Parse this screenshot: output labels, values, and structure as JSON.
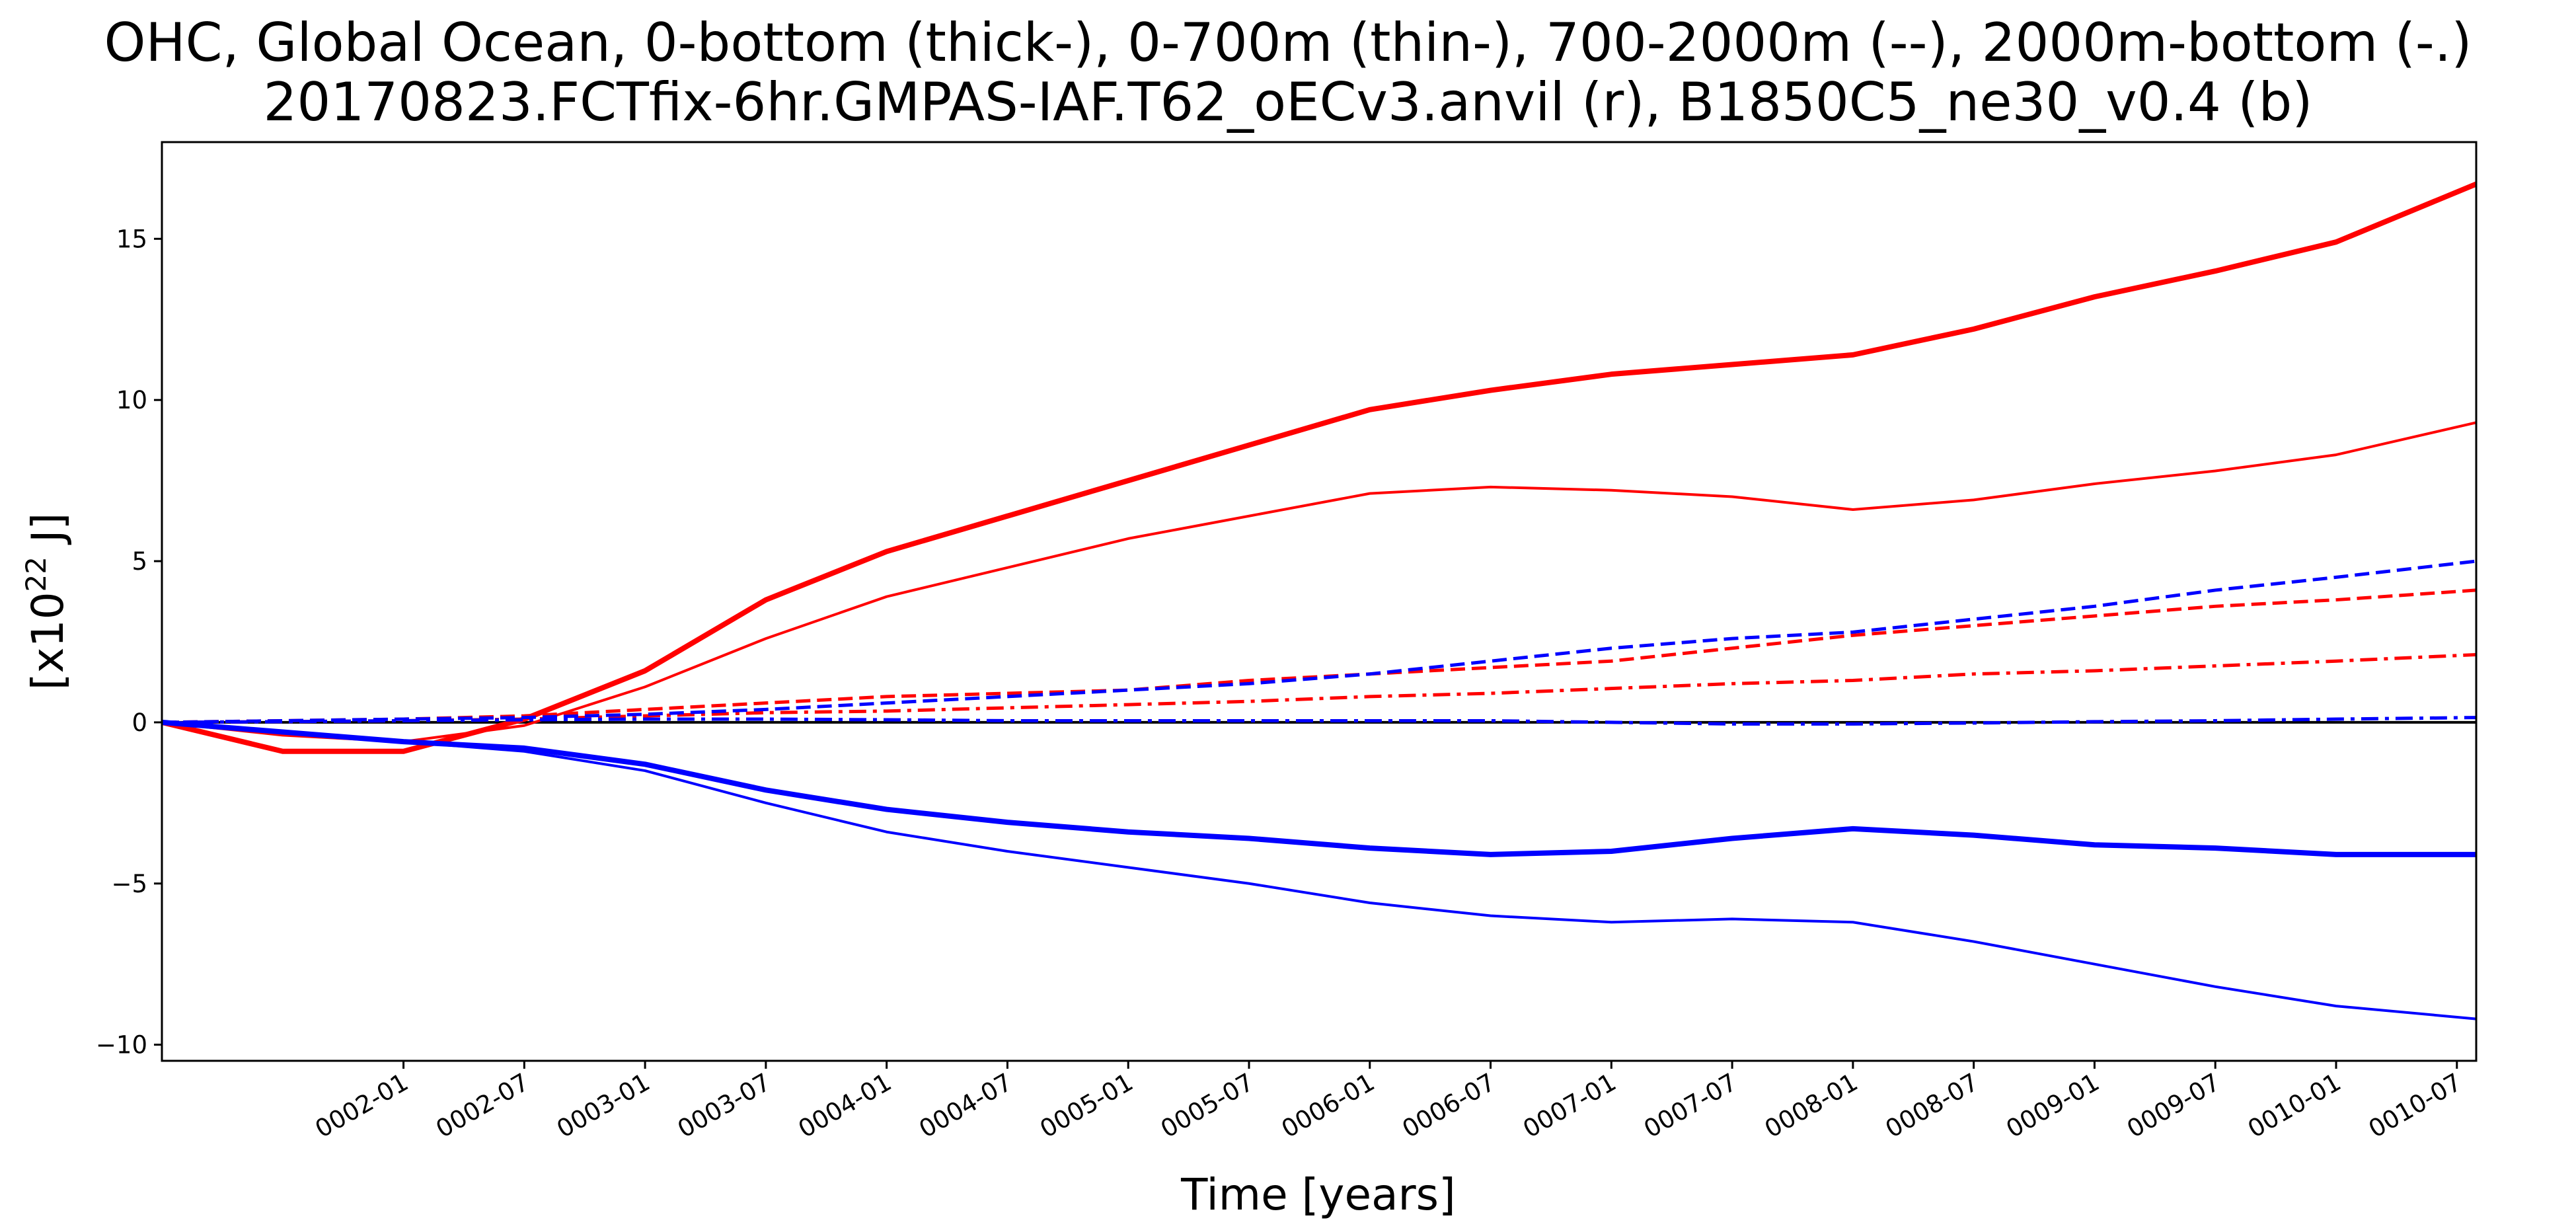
{
  "chart_data": {
    "type": "line",
    "title": "OHC, Global Ocean, 0-bottom (thick-), 0-700m (thin-), 700-2000m (--), 2000m-bottom (-.)",
    "subtitle": "20170823.FCTfix-6hr.GMPAS-IAF.T62_oECv3.anvil (r), B1850C5_ne30_v0.4 (b)",
    "xlabel": "Time [years]",
    "ylabel": "[x10",
    "ylabel_sup": "22",
    "ylabel_suffix": " J]",
    "xlim": [
      2001.0,
      2010.58
    ],
    "ylim": [
      -10.5,
      18
    ],
    "grid": false,
    "legend": "none",
    "x_ticks": [
      {
        "value": 2002.0,
        "label": "0002-01"
      },
      {
        "value": 2002.5,
        "label": "0002-07"
      },
      {
        "value": 2003.0,
        "label": "0003-01"
      },
      {
        "value": 2003.5,
        "label": "0003-07"
      },
      {
        "value": 2004.0,
        "label": "0004-01"
      },
      {
        "value": 2004.5,
        "label": "0004-07"
      },
      {
        "value": 2005.0,
        "label": "0005-01"
      },
      {
        "value": 2005.5,
        "label": "0005-07"
      },
      {
        "value": 2006.0,
        "label": "0006-01"
      },
      {
        "value": 2006.5,
        "label": "0006-07"
      },
      {
        "value": 2007.0,
        "label": "0007-01"
      },
      {
        "value": 2007.5,
        "label": "0007-07"
      },
      {
        "value": 2008.0,
        "label": "0008-01"
      },
      {
        "value": 2008.5,
        "label": "0008-07"
      },
      {
        "value": 2009.0,
        "label": "0009-01"
      },
      {
        "value": 2009.5,
        "label": "0009-07"
      },
      {
        "value": 2010.0,
        "label": "0010-01"
      },
      {
        "value": 2010.5,
        "label": "0010-07"
      }
    ],
    "y_ticks": [
      {
        "value": 15,
        "label": "15"
      },
      {
        "value": 10,
        "label": "10"
      },
      {
        "value": 5,
        "label": "5"
      },
      {
        "value": 0,
        "label": "0"
      },
      {
        "value": -5,
        "label": "−5"
      },
      {
        "value": -10,
        "label": "−10"
      }
    ],
    "x": [
      2001.0,
      2001.5,
      2002.0,
      2002.5,
      2003.0,
      2003.5,
      2004.0,
      2004.5,
      2005.0,
      2005.5,
      2006.0,
      2006.5,
      2007.0,
      2007.5,
      2008.0,
      2008.5,
      2009.0,
      2009.5,
      2010.0,
      2010.58
    ],
    "series": [
      {
        "color": "#ff0000",
        "style": "thick",
        "values": [
          0,
          -0.9,
          -0.9,
          0.1,
          1.6,
          3.8,
          5.3,
          6.4,
          7.5,
          8.6,
          9.7,
          10.3,
          10.8,
          11.1,
          11.4,
          12.2,
          13.2,
          14.0,
          14.9,
          16.7
        ]
      },
      {
        "color": "#ff0000",
        "style": "thin",
        "values": [
          0,
          -0.4,
          -0.6,
          -0.1,
          1.1,
          2.6,
          3.9,
          4.8,
          5.7,
          6.4,
          7.1,
          7.3,
          7.2,
          7.0,
          6.6,
          6.9,
          7.4,
          7.8,
          8.3,
          9.3
        ]
      },
      {
        "color": "#ff0000",
        "style": "dashed",
        "values": [
          0,
          0.05,
          0.1,
          0.2,
          0.4,
          0.6,
          0.8,
          0.9,
          1.0,
          1.3,
          1.5,
          1.7,
          1.9,
          2.3,
          2.7,
          3.0,
          3.3,
          3.6,
          3.8,
          4.1
        ]
      },
      {
        "color": "#ff0000",
        "style": "dashdot",
        "values": [
          0,
          0.02,
          0.05,
          0.1,
          0.2,
          0.3,
          0.35,
          0.45,
          0.55,
          0.65,
          0.8,
          0.9,
          1.05,
          1.2,
          1.3,
          1.5,
          1.6,
          1.75,
          1.9,
          2.1
        ]
      },
      {
        "color": "#0000ff",
        "style": "thick",
        "values": [
          0,
          -0.3,
          -0.6,
          -0.8,
          -1.3,
          -2.1,
          -2.7,
          -3.1,
          -3.4,
          -3.6,
          -3.9,
          -4.1,
          -4.0,
          -3.6,
          -3.3,
          -3.5,
          -3.8,
          -3.9,
          -4.1,
          -4.1
        ]
      },
      {
        "color": "#0000ff",
        "style": "thin",
        "values": [
          0,
          -0.3,
          -0.6,
          -0.9,
          -1.5,
          -2.5,
          -3.4,
          -4.0,
          -4.5,
          -5.0,
          -5.6,
          -6.0,
          -6.2,
          -6.1,
          -6.2,
          -6.8,
          -7.5,
          -8.2,
          -8.8,
          -9.2
        ]
      },
      {
        "color": "#0000ff",
        "style": "dashed",
        "values": [
          0,
          0.05,
          0.1,
          0.15,
          0.25,
          0.4,
          0.6,
          0.8,
          1.0,
          1.2,
          1.5,
          1.9,
          2.3,
          2.6,
          2.8,
          3.2,
          3.6,
          4.1,
          4.5,
          5.0
        ]
      },
      {
        "color": "#0000ff",
        "style": "dashdot",
        "values": [
          0,
          0.02,
          0.05,
          0.08,
          0.1,
          0.1,
          0.08,
          0.05,
          0.05,
          0.05,
          0.05,
          0.05,
          0.0,
          -0.05,
          -0.05,
          -0.02,
          0.02,
          0.05,
          0.1,
          0.15
        ]
      }
    ],
    "zero_line_color": "#000000"
  }
}
